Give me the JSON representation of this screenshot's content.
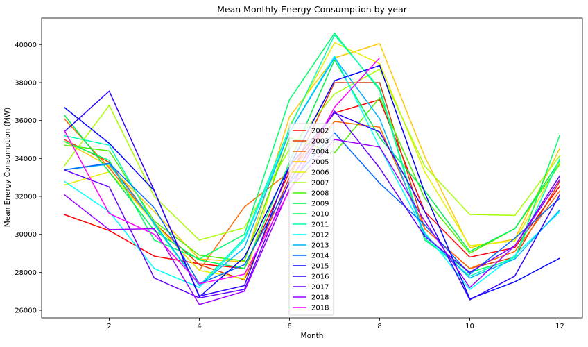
{
  "chart_data": {
    "type": "line",
    "title": "Mean Monthly Energy Consumption by year",
    "xlabel": "Month",
    "ylabel": "Mean Energy Consumption (MW)",
    "xlim": [
      0.5,
      12.5
    ],
    "ylim": [
      25600,
      41400
    ],
    "xticks": [
      2,
      4,
      6,
      8,
      10,
      12
    ],
    "yticks": [
      26000,
      28000,
      30000,
      32000,
      34000,
      36000,
      38000,
      40000
    ],
    "grid": false,
    "legend_position": "bottom-center",
    "x": [
      1,
      2,
      3,
      4,
      5,
      6,
      7,
      8,
      9,
      10,
      11,
      12
    ],
    "series": [
      {
        "name": "2002",
        "color": "#ff0000",
        "values": [
          31050,
          30200,
          28850,
          28450,
          28200,
          33300,
          36400,
          37100,
          31200,
          28800,
          29300,
          32550
        ]
      },
      {
        "name": "2003",
        "color": "#e03c00",
        "values": [
          35000,
          33800,
          30600,
          28400,
          27600,
          33000,
          38000,
          38000,
          30300,
          28200,
          28800,
          32800
        ]
      },
      {
        "name": "2004",
        "color": "#ff6a00",
        "values": [
          36100,
          33500,
          30600,
          28100,
          31450,
          33300,
          35950,
          35650,
          30300,
          28200,
          29100,
          32300
        ]
      },
      {
        "name": "2005",
        "color": "#ffc800",
        "values": [
          34900,
          33600,
          31200,
          28700,
          28550,
          36200,
          39300,
          40050,
          34100,
          29300,
          29750,
          34550
        ]
      },
      {
        "name": "2006",
        "color": "#e6f000",
        "values": [
          32600,
          33300,
          30600,
          28100,
          27650,
          35700,
          40100,
          39000,
          33300,
          29400,
          29650,
          33800
        ]
      },
      {
        "name": "2007",
        "color": "#a6ff00",
        "values": [
          33600,
          36800,
          32000,
          29700,
          30350,
          34500,
          37400,
          38700,
          33600,
          31050,
          31000,
          34150
        ]
      },
      {
        "name": "2008",
        "color": "#4cf000",
        "values": [
          34700,
          34400,
          30700,
          28900,
          28600,
          35100,
          34300,
          37200,
          31900,
          29000,
          30300,
          33700
        ]
      },
      {
        "name": "2009",
        "color": "#00f050",
        "values": [
          36300,
          33300,
          30200,
          28650,
          28200,
          33800,
          39200,
          35100,
          32300,
          29100,
          30300,
          33900
        ]
      },
      {
        "name": "2010",
        "color": "#00ff66",
        "values": [
          34900,
          33900,
          29700,
          28700,
          30000,
          37100,
          40600,
          37600,
          29700,
          28000,
          28700,
          35250
        ]
      },
      {
        "name": "2011",
        "color": "#00ffb3",
        "values": [
          35200,
          34700,
          30500,
          27300,
          29800,
          35600,
          40500,
          37700,
          29800,
          27800,
          28800,
          34000
        ]
      },
      {
        "name": "2012",
        "color": "#00ffff",
        "values": [
          32800,
          31200,
          28200,
          27200,
          29700,
          35400,
          39400,
          34600,
          30100,
          27100,
          28900,
          31200
        ]
      },
      {
        "name": "2013",
        "color": "#00b3ff",
        "values": [
          33400,
          33700,
          30600,
          27300,
          29300,
          35400,
          39300,
          36100,
          30000,
          27700,
          28700,
          31300
        ]
      },
      {
        "name": "2014",
        "color": "#0066ff",
        "values": [
          33400,
          33750,
          31400,
          27400,
          28400,
          32700,
          35350,
          32700,
          30500,
          27900,
          29800,
          31900
        ]
      },
      {
        "name": "2015",
        "color": "#0000ff",
        "values": [
          36700,
          34800,
          32300,
          26700,
          28800,
          33600,
          38100,
          38900,
          32200,
          26600,
          27500,
          28750
        ]
      },
      {
        "name": "2016",
        "color": "#3300ff",
        "values": [
          35400,
          37550,
          32300,
          26750,
          27300,
          33600,
          36400,
          35400,
          31200,
          26550,
          27800,
          32100
        ]
      },
      {
        "name": "2017",
        "color": "#6600ff",
        "values": [
          33400,
          32500,
          27700,
          26650,
          27100,
          32800,
          36500,
          33500,
          29900,
          28000,
          29400,
          33100
        ]
      },
      {
        "name": "2018",
        "color": "#9900ff",
        "values": [
          32100,
          30250,
          30300,
          26300,
          27000,
          32400,
          35000,
          34600,
          30700,
          27200,
          29400,
          32900
        ]
      },
      {
        "name": "2018",
        "color": "#ff00ff",
        "values": [
          35500,
          31100,
          30000,
          27400,
          27900,
          32300,
          36700,
          39300,
          null,
          null,
          null,
          null
        ]
      }
    ]
  }
}
